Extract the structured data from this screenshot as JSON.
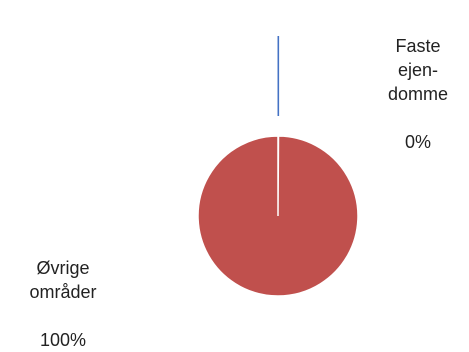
{
  "chart_data": {
    "type": "pie",
    "title": "",
    "slices": [
      {
        "label": "Faste\nejen-\ndomme",
        "percent_label": "0%",
        "value": 0.1,
        "color": "#4472C4"
      },
      {
        "label": "Øvrige\nområder",
        "percent_label": "100%",
        "value": 99.9,
        "color": "#C0504D"
      }
    ],
    "start_angle_deg": 0,
    "exploded_slice": "Faste\nejen-\ndomme",
    "legend": "none"
  }
}
